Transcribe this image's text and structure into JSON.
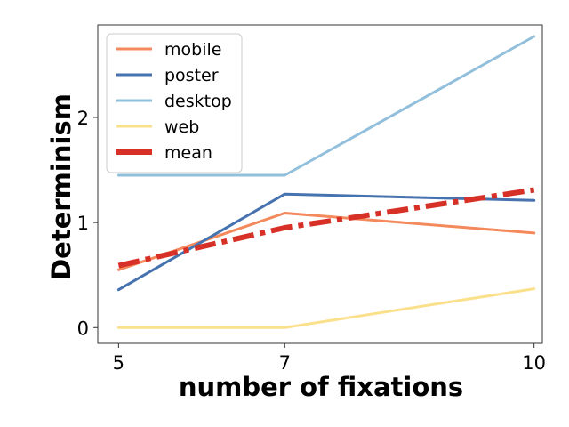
{
  "chart_data": {
    "type": "line",
    "xlabel": "number of fixations",
    "ylabel": "Determinism",
    "x": [
      5,
      7,
      10
    ],
    "x_ticks": [
      "5",
      "7",
      "10"
    ],
    "y_ticks": [
      "0",
      "1",
      "2"
    ],
    "xlim": [
      4.75,
      10.1
    ],
    "ylim": [
      -0.15,
      2.88
    ],
    "grid": false,
    "legend_position": "top-left",
    "series": [
      {
        "name": "mobile",
        "values": [
          0.55,
          1.09,
          0.9
        ],
        "color": "#f4895c",
        "style": "solid"
      },
      {
        "name": "poster",
        "values": [
          0.36,
          1.27,
          1.21
        ],
        "color": "#4672b0",
        "style": "solid"
      },
      {
        "name": "desktop",
        "values": [
          1.45,
          1.45,
          2.77
        ],
        "color": "#92c0dc",
        "style": "solid"
      },
      {
        "name": "web",
        "values": [
          0.0,
          0.0,
          0.37
        ],
        "color": "#fbe08c",
        "style": "solid"
      },
      {
        "name": "mean",
        "values": [
          0.59,
          0.95,
          1.31
        ],
        "color": "#d73027",
        "style": "dashdot"
      }
    ]
  }
}
